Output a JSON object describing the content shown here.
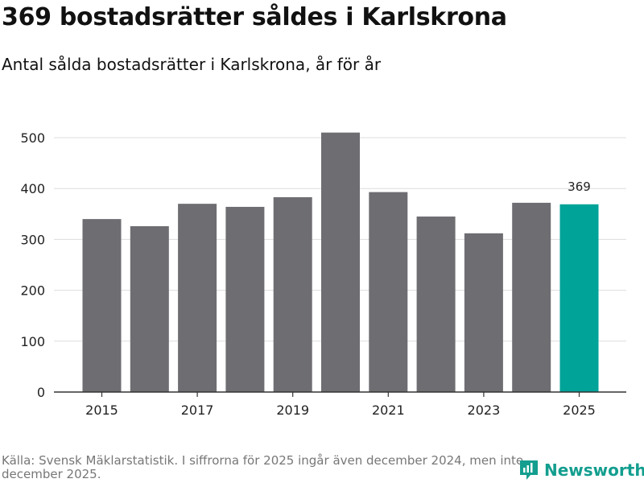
{
  "header": {
    "title": "369 bostadsrätter såldes i Karlskrona",
    "subtitle": "Antal sålda bostadsrätter i Karlskrona, år för år"
  },
  "footer": {
    "source": "Källa: Svensk Mäklarstatistik. I siffrorna för 2025 ingår även december 2024, men inte december 2025.",
    "brand": "Newsworthy"
  },
  "colors": {
    "bar": "#6e6d72",
    "highlight": "#00a398",
    "grid": "#dddddd",
    "brand": "#139e8f"
  },
  "chart_data": {
    "type": "bar",
    "title": "369 bostadsrätter såldes i Karlskrona",
    "subtitle": "Antal sålda bostadsrätter i Karlskrona, år för år",
    "xlabel": "",
    "ylabel": "",
    "categories": [
      "2015",
      "2016",
      "2017",
      "2018",
      "2019",
      "2020",
      "2021",
      "2022",
      "2023",
      "2024",
      "2025"
    ],
    "values": [
      340,
      326,
      370,
      364,
      383,
      510,
      393,
      345,
      312,
      372,
      369
    ],
    "ylim": [
      0,
      500
    ],
    "yticks": [
      "0",
      "100",
      "200",
      "300",
      "400",
      "500"
    ],
    "xtick_labels": [
      "2015",
      "2017",
      "2019",
      "2021",
      "2023",
      "2025"
    ],
    "highlight_category": "2025",
    "annotation": "369",
    "grid": true
  }
}
